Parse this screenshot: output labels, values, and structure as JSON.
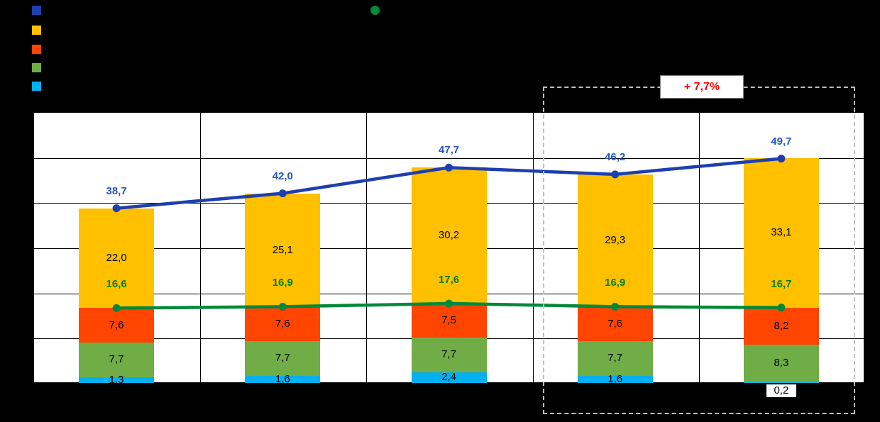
{
  "canvas": {
    "bg": "#000000"
  },
  "legend": {
    "chips": [
      {
        "name": "legend-chip-total-line",
        "color": "#1E3FAE"
      },
      {
        "name": "legend-chip-yellow-segment",
        "color": "#FFC000"
      },
      {
        "name": "legend-chip-orange-segment",
        "color": "#FF4500"
      },
      {
        "name": "legend-chip-green-segment",
        "color": "#70AD47"
      },
      {
        "name": "legend-chip-lightblue-segment",
        "color": "#00B0F0"
      }
    ],
    "line_dot": {
      "name": "legend-dot-green-line",
      "color": "#00893A"
    }
  },
  "annotation": {
    "text": "+ 7,7%",
    "color": "#FF0000"
  },
  "chart_data": {
    "type": "bar",
    "subtype": "stacked-bars-with-line-overlays",
    "categories": [
      "",
      "",
      "",
      "",
      ""
    ],
    "ylim": [
      0,
      60
    ],
    "grid_step": 10,
    "grid": true,
    "legend_position": "top-left",
    "bar_series": [
      {
        "name": "segment-lightblue",
        "color": "#00B0F0",
        "values": [
          1.3,
          1.6,
          2.4,
          1.6,
          0.2
        ],
        "labels": [
          "1,3",
          "1,6",
          "2,4",
          "1,6",
          "0,2"
        ]
      },
      {
        "name": "segment-green",
        "color": "#70AD47",
        "values": [
          7.7,
          7.7,
          7.7,
          7.7,
          8.3
        ],
        "labels": [
          "7,7",
          "7,7",
          "7,7",
          "7,7",
          "8,3"
        ]
      },
      {
        "name": "segment-orange",
        "color": "#FF4500",
        "values": [
          7.6,
          7.6,
          7.5,
          7.6,
          8.2
        ],
        "labels": [
          "7,6",
          "7,6",
          "7,5",
          "7,6",
          "8,2"
        ]
      },
      {
        "name": "segment-yellow",
        "color": "#FFC000",
        "values": [
          22.0,
          25.1,
          30.2,
          29.3,
          33.1
        ],
        "labels": [
          "22,0",
          "25,1",
          "30,2",
          "29,3",
          "33,1"
        ]
      }
    ],
    "line_series": [
      {
        "name": "line-total",
        "color": "#1E3FAE",
        "label_color": "#2456C9",
        "values": [
          38.7,
          42.0,
          47.7,
          46.2,
          49.7
        ],
        "labels": [
          "38,7",
          "42,0",
          "47,7",
          "46,2",
          "49,7"
        ],
        "label_offset": 33
      },
      {
        "name": "line-green",
        "color": "#00893A",
        "label_color": "#008000",
        "values": [
          16.6,
          16.9,
          17.6,
          16.9,
          16.7
        ],
        "labels": [
          "16,6",
          "16,9",
          "17,6",
          "16,9",
          "16,7"
        ],
        "label_offset": 42
      }
    ],
    "annotation": "+ 7,7%"
  }
}
